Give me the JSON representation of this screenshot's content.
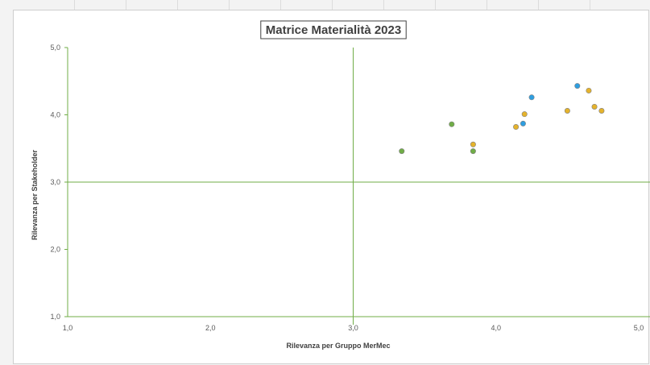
{
  "chart_data": {
    "type": "scatter",
    "title": "Matrice Materialità 2023",
    "xlabel": "Rilevanza per  Gruppo MerMec",
    "ylabel": "Rilevanza per  Stakeholder",
    "xlim": [
      1,
      5
    ],
    "ylim": [
      1,
      5
    ],
    "xticks": [
      "1,0",
      "2,0",
      "3,0",
      "4,0",
      "5,0"
    ],
    "yticks": [
      "1,0",
      "2,0",
      "3,0",
      "4,0",
      "5,0"
    ],
    "reference_lines": {
      "x": 3.0,
      "y": 3.0
    },
    "grid": false,
    "legend": "none",
    "colors": {
      "green": "#70ad47",
      "blue": "#2e9ee0",
      "gold": "#e5b32c",
      "axis": "#70ad47",
      "marker_edge": "#808080"
    },
    "series": [
      {
        "color": "#70ad47",
        "points": [
          [
            3.34,
            3.46
          ],
          [
            3.69,
            3.86
          ],
          [
            3.84,
            3.46
          ]
        ]
      },
      {
        "color": "#2e9ee0",
        "points": [
          [
            4.19,
            3.87
          ],
          [
            4.25,
            4.26
          ],
          [
            4.57,
            4.43
          ]
        ]
      },
      {
        "color": "#e5b32c",
        "points": [
          [
            3.84,
            3.56
          ],
          [
            4.14,
            3.82
          ],
          [
            4.2,
            4.01
          ],
          [
            4.5,
            4.06
          ],
          [
            4.65,
            4.36
          ],
          [
            4.69,
            4.12
          ],
          [
            4.74,
            4.06
          ]
        ]
      }
    ]
  }
}
